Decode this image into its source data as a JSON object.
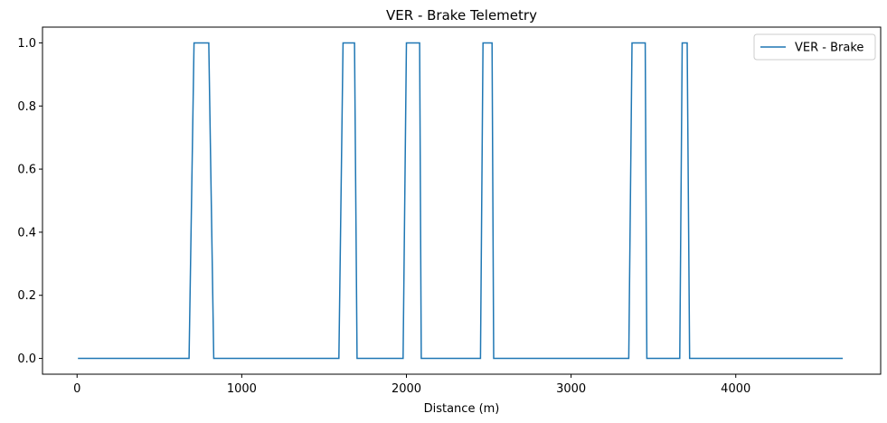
{
  "chart_data": {
    "type": "line",
    "title": "VER - Brake Telemetry",
    "xlabel": "Distance (m)",
    "ylabel": "",
    "xlim": [
      -210,
      4880
    ],
    "ylim": [
      -0.05,
      1.05
    ],
    "x_ticks": [
      0,
      1000,
      2000,
      3000,
      4000
    ],
    "y_ticks": [
      0.0,
      0.2,
      0.4,
      0.6,
      0.8,
      1.0
    ],
    "x_tick_labels": [
      "0",
      "1000",
      "2000",
      "3000",
      "4000"
    ],
    "y_tick_labels": [
      "0.0",
      "0.2",
      "0.4",
      "0.6",
      "0.8",
      "1.0"
    ],
    "grid": false,
    "legend_position": "top-right",
    "series": [
      {
        "name": "VER - Brake",
        "color": "#1f77b4",
        "x": [
          5,
          680,
          710,
          800,
          830,
          1590,
          1615,
          1685,
          1700,
          1980,
          2000,
          2080,
          2090,
          2450,
          2465,
          2520,
          2530,
          3350,
          3370,
          3450,
          3460,
          3660,
          3675,
          3705,
          3720,
          4650
        ],
        "y": [
          0,
          0,
          1,
          1,
          0,
          0,
          1,
          1,
          0,
          0,
          1,
          1,
          0,
          0,
          1,
          1,
          0,
          0,
          1,
          1,
          0,
          0,
          1,
          1,
          0,
          0
        ]
      }
    ]
  }
}
